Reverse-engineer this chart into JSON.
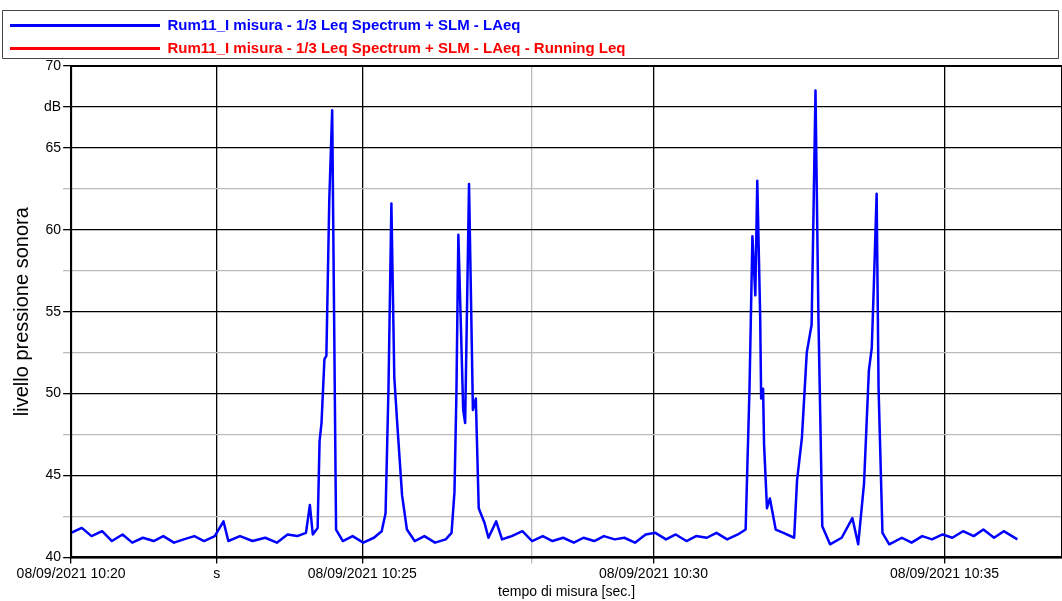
{
  "chart_data": {
    "type": "line",
    "ylabel": "livello pressione sonora",
    "xlabel": "tempo di misura [sec.]",
    "x": [
      "2021-09-08T10:20:00",
      "2021-09-08T10:20:11",
      "2021-09-08T10:20:21",
      "2021-09-08T10:20:32",
      "2021-09-08T10:20:42",
      "2021-09-08T10:20:53",
      "2021-09-08T10:21:03",
      "2021-09-08T10:21:14",
      "2021-09-08T10:21:25",
      "2021-09-08T10:21:35",
      "2021-09-08T10:21:46",
      "2021-09-08T10:21:56",
      "2021-09-08T10:22:07",
      "2021-09-08T10:22:17",
      "2021-09-08T10:22:28",
      "2021-09-08T10:22:37",
      "2021-09-08T10:22:42",
      "2021-09-08T10:22:54",
      "2021-09-08T10:23:07",
      "2021-09-08T10:23:20",
      "2021-09-08T10:23:32",
      "2021-09-08T10:23:43",
      "2021-09-08T10:23:53",
      "2021-09-08T10:24:02",
      "2021-09-08T10:24:06",
      "2021-09-08T10:24:09",
      "2021-09-08T10:24:14",
      "2021-09-08T10:24:16",
      "2021-09-08T10:24:18",
      "2021-09-08T10:24:21",
      "2021-09-08T10:24:23",
      "2021-09-08T10:24:26",
      "2021-09-08T10:24:29",
      "2021-09-08T10:24:33",
      "2021-09-08T10:24:40",
      "2021-09-08T10:24:50",
      "2021-09-08T10:25:01",
      "2021-09-08T10:25:12",
      "2021-09-08T10:25:20",
      "2021-09-08T10:25:24",
      "2021-09-08T10:25:27",
      "2021-09-08T10:25:30",
      "2021-09-08T10:25:33",
      "2021-09-08T10:25:36",
      "2021-09-08T10:25:41",
      "2021-09-08T10:25:46",
      "2021-09-08T10:25:54",
      "2021-09-08T10:26:04",
      "2021-09-08T10:26:15",
      "2021-09-08T10:26:26",
      "2021-09-08T10:26:32",
      "2021-09-08T10:26:35",
      "2021-09-08T10:26:37",
      "2021-09-08T10:26:39",
      "2021-09-08T10:26:44",
      "2021-09-08T10:26:46",
      "2021-09-08T10:26:50",
      "2021-09-08T10:26:54",
      "2021-09-08T10:26:57",
      "2021-09-08T10:27:00",
      "2021-09-08T10:27:06",
      "2021-09-08T10:27:10",
      "2021-09-08T10:27:18",
      "2021-09-08T10:27:24",
      "2021-09-08T10:27:34",
      "2021-09-08T10:27:45",
      "2021-09-08T10:27:55",
      "2021-09-08T10:28:06",
      "2021-09-08T10:28:16",
      "2021-09-08T10:28:27",
      "2021-09-08T10:28:38",
      "2021-09-08T10:28:48",
      "2021-09-08T10:28:59",
      "2021-09-08T10:29:09",
      "2021-09-08T10:29:20",
      "2021-09-08T10:29:30",
      "2021-09-08T10:29:41",
      "2021-09-08T10:29:52",
      "2021-09-08T10:30:02",
      "2021-09-08T10:30:13",
      "2021-09-08T10:30:23",
      "2021-09-08T10:30:34",
      "2021-09-08T10:30:44",
      "2021-09-08T10:30:55",
      "2021-09-08T10:31:05",
      "2021-09-08T10:31:16",
      "2021-09-08T10:31:27",
      "2021-09-08T10:31:35",
      "2021-09-08T10:31:39",
      "2021-09-08T10:31:42",
      "2021-09-08T10:31:45",
      "2021-09-08T10:31:47",
      "2021-09-08T10:31:50",
      "2021-09-08T10:31:51",
      "2021-09-08T10:31:53",
      "2021-09-08T10:31:54",
      "2021-09-08T10:31:57",
      "2021-09-08T10:32:00",
      "2021-09-08T10:32:06",
      "2021-09-08T10:32:14",
      "2021-09-08T10:32:25",
      "2021-09-08T10:32:28",
      "2021-09-08T10:32:33",
      "2021-09-08T10:32:38",
      "2021-09-08T10:32:43",
      "2021-09-08T10:32:45",
      "2021-09-08T10:32:47",
      "2021-09-08T10:32:50",
      "2021-09-08T10:32:54",
      "2021-09-08T10:33:02",
      "2021-09-08T10:33:14",
      "2021-09-08T10:33:25",
      "2021-09-08T10:33:31",
      "2021-09-08T10:33:37",
      "2021-09-08T10:33:42",
      "2021-09-08T10:33:45",
      "2021-09-08T10:33:47",
      "2021-09-08T10:33:50",
      "2021-09-08T10:33:52",
      "2021-09-08T10:33:56",
      "2021-09-08T10:34:03",
      "2021-09-08T10:34:16",
      "2021-09-08T10:34:26",
      "2021-09-08T10:34:37",
      "2021-09-08T10:34:47",
      "2021-09-08T10:34:58",
      "2021-09-08T10:35:08",
      "2021-09-08T10:35:19",
      "2021-09-08T10:35:30",
      "2021-09-08T10:35:40",
      "2021-09-08T10:35:51",
      "2021-09-08T10:36:01",
      "2021-09-08T10:36:15"
    ],
    "series": [
      {
        "name": "Rum11_I misura - 1/3 Leq Spectrum + SLM - LAeq",
        "color": "#0000ff",
        "values": [
          41.5,
          41.8,
          41.3,
          41.6,
          41.0,
          41.4,
          40.9,
          41.2,
          41.0,
          41.3,
          40.9,
          41.1,
          41.3,
          41.0,
          41.3,
          42.2,
          41.0,
          41.3,
          41.0,
          41.2,
          40.9,
          41.4,
          41.3,
          41.5,
          43.2,
          41.4,
          41.8,
          47.1,
          48.2,
          52.1,
          52.3,
          61.8,
          67.3,
          41.7,
          41.0,
          41.3,
          40.9,
          41.2,
          41.6,
          42.7,
          50.3,
          61.6,
          51.0,
          48.2,
          43.8,
          41.7,
          41.0,
          41.3,
          40.9,
          41.1,
          41.5,
          44.0,
          50.0,
          59.7,
          49.0,
          48.2,
          62.8,
          49.0,
          49.7,
          43.0,
          42.1,
          41.2,
          42.2,
          41.1,
          41.3,
          41.6,
          41.0,
          41.3,
          41.0,
          41.2,
          40.9,
          41.2,
          41.0,
          41.3,
          41.1,
          41.2,
          40.9,
          41.4,
          41.5,
          41.1,
          41.4,
          41.0,
          41.3,
          41.2,
          41.5,
          41.1,
          41.4,
          41.7,
          50.3,
          59.6,
          56.0,
          63.0,
          54.7,
          49.7,
          50.3,
          46.9,
          43.0,
          43.6,
          41.7,
          41.5,
          41.2,
          44.7,
          47.3,
          52.5,
          54.2,
          61.2,
          68.5,
          54.7,
          41.9,
          40.8,
          41.2,
          42.4,
          40.8,
          44.5,
          51.4,
          52.8,
          56.4,
          62.2,
          50.3,
          41.5,
          40.8,
          41.2,
          40.9,
          41.3,
          41.1,
          41.4,
          41.2,
          41.6,
          41.3,
          41.7,
          41.2,
          41.6,
          41.1
        ]
      },
      {
        "name": "Rum11_I misura - 1/3 Leq Spectrum + SLM - LAeq - Running Leq",
        "color": "#ff0000",
        "values": [
          null,
          null,
          null,
          null,
          null,
          null,
          null,
          null,
          null,
          null,
          null,
          null,
          null,
          null,
          null,
          null,
          null,
          null,
          null,
          null,
          null,
          null,
          null,
          null,
          null,
          null,
          null,
          null,
          null,
          null,
          null,
          null,
          null,
          null,
          null,
          null,
          null,
          null,
          null,
          null,
          null,
          null,
          null,
          null,
          null,
          null,
          null,
          null,
          null,
          null,
          null,
          null,
          null,
          null,
          null,
          null,
          null,
          null,
          null,
          null,
          null,
          null,
          null,
          null,
          null,
          null,
          null,
          null,
          null,
          null,
          null,
          null,
          null,
          null,
          null,
          null,
          null,
          null,
          null,
          null,
          null,
          null,
          null,
          null,
          null,
          null,
          null,
          null,
          null,
          null,
          null,
          null,
          null,
          null,
          null,
          null,
          null,
          null,
          null,
          null,
          null,
          null,
          null,
          null,
          null,
          null,
          null,
          null,
          null,
          null,
          null,
          null,
          null,
          null,
          null,
          null,
          null,
          null,
          null,
          null,
          null,
          null,
          null,
          null,
          null,
          null,
          null,
          null,
          null,
          null,
          null,
          null,
          null
        ]
      }
    ],
    "xlim": [
      "2021-09-08T10:20:00",
      "2021-09-08T10:37:01"
    ],
    "xticks": [
      {
        "value": "2021-09-08T10:20",
        "label": "08/09/2021 10:20"
      },
      {
        "value": "2021-09-08T10:22:30",
        "label": "s"
      },
      {
        "value": "2021-09-08T10:25",
        "label": "08/09/2021 10:25"
      },
      {
        "value": "2021-09-08T10:27:55",
        "label": null
      },
      {
        "value": "2021-09-08T10:30",
        "label": "08/09/2021 10:30"
      },
      {
        "value": "2021-09-08T10:35",
        "label": "08/09/2021 10:35"
      }
    ],
    "ylim": [
      40,
      70
    ],
    "yticks": [
      40,
      {
        "value": 42.5,
        "label": null
      },
      45,
      {
        "value": 47.5,
        "label": null
      },
      50,
      {
        "value": 52.5,
        "label": null
      },
      55,
      {
        "value": 57.5,
        "label": null
      },
      60,
      {
        "value": 62.5,
        "label": null
      },
      65,
      {
        "value": 67.5,
        "label": "dB"
      },
      70
    ],
    "grid": true,
    "legend": "top",
    "marker": "none",
    "line_style": "solid"
  }
}
